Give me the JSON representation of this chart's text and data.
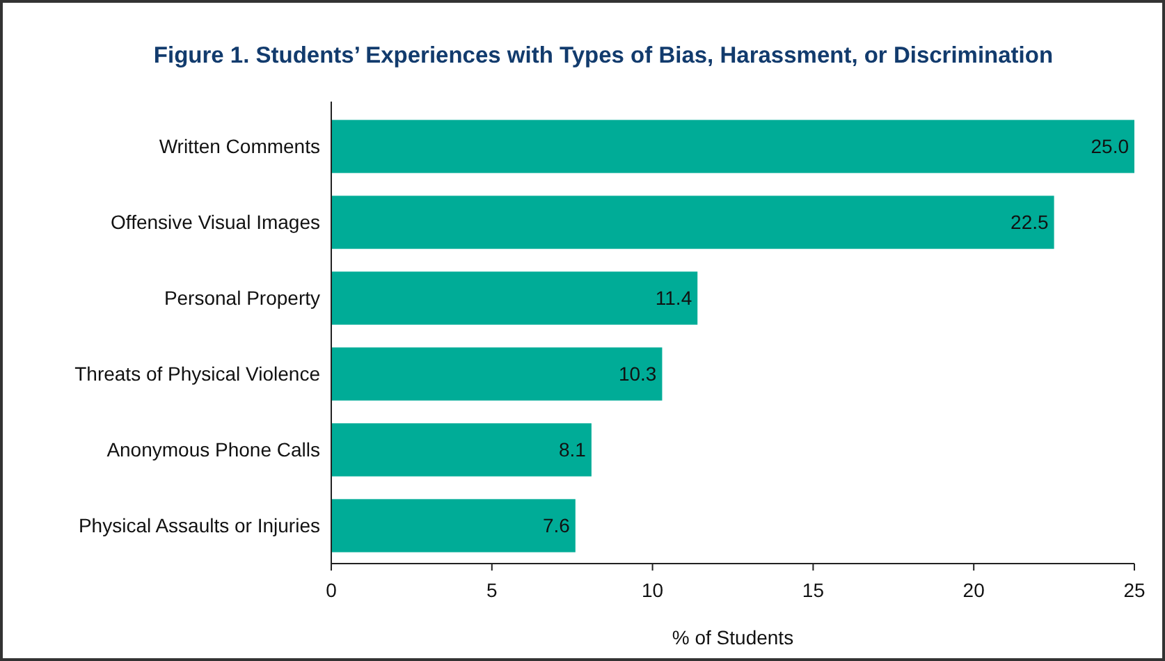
{
  "chart_data": {
    "type": "bar",
    "orientation": "horizontal",
    "title": "Figure 1. Students’ Experiences with Types of Bias, Harassment, or Discrimination",
    "xlabel": "% of Students",
    "categories": [
      "Written Comments",
      "Offensive Visual Images",
      "Personal Property",
      "Threats of Physical Violence",
      "Anonymous Phone Calls",
      "Physical Assaults or Injuries"
    ],
    "values": [
      25.0,
      22.5,
      11.4,
      10.3,
      8.1,
      7.6
    ],
    "value_labels": [
      "25.0",
      "22.5",
      "11.4",
      "10.3",
      "8.1",
      "7.6"
    ],
    "color": "#00ac97",
    "xlim": [
      0,
      25
    ],
    "xticks": [
      0,
      5,
      10,
      15,
      20,
      25
    ],
    "grid": false
  }
}
